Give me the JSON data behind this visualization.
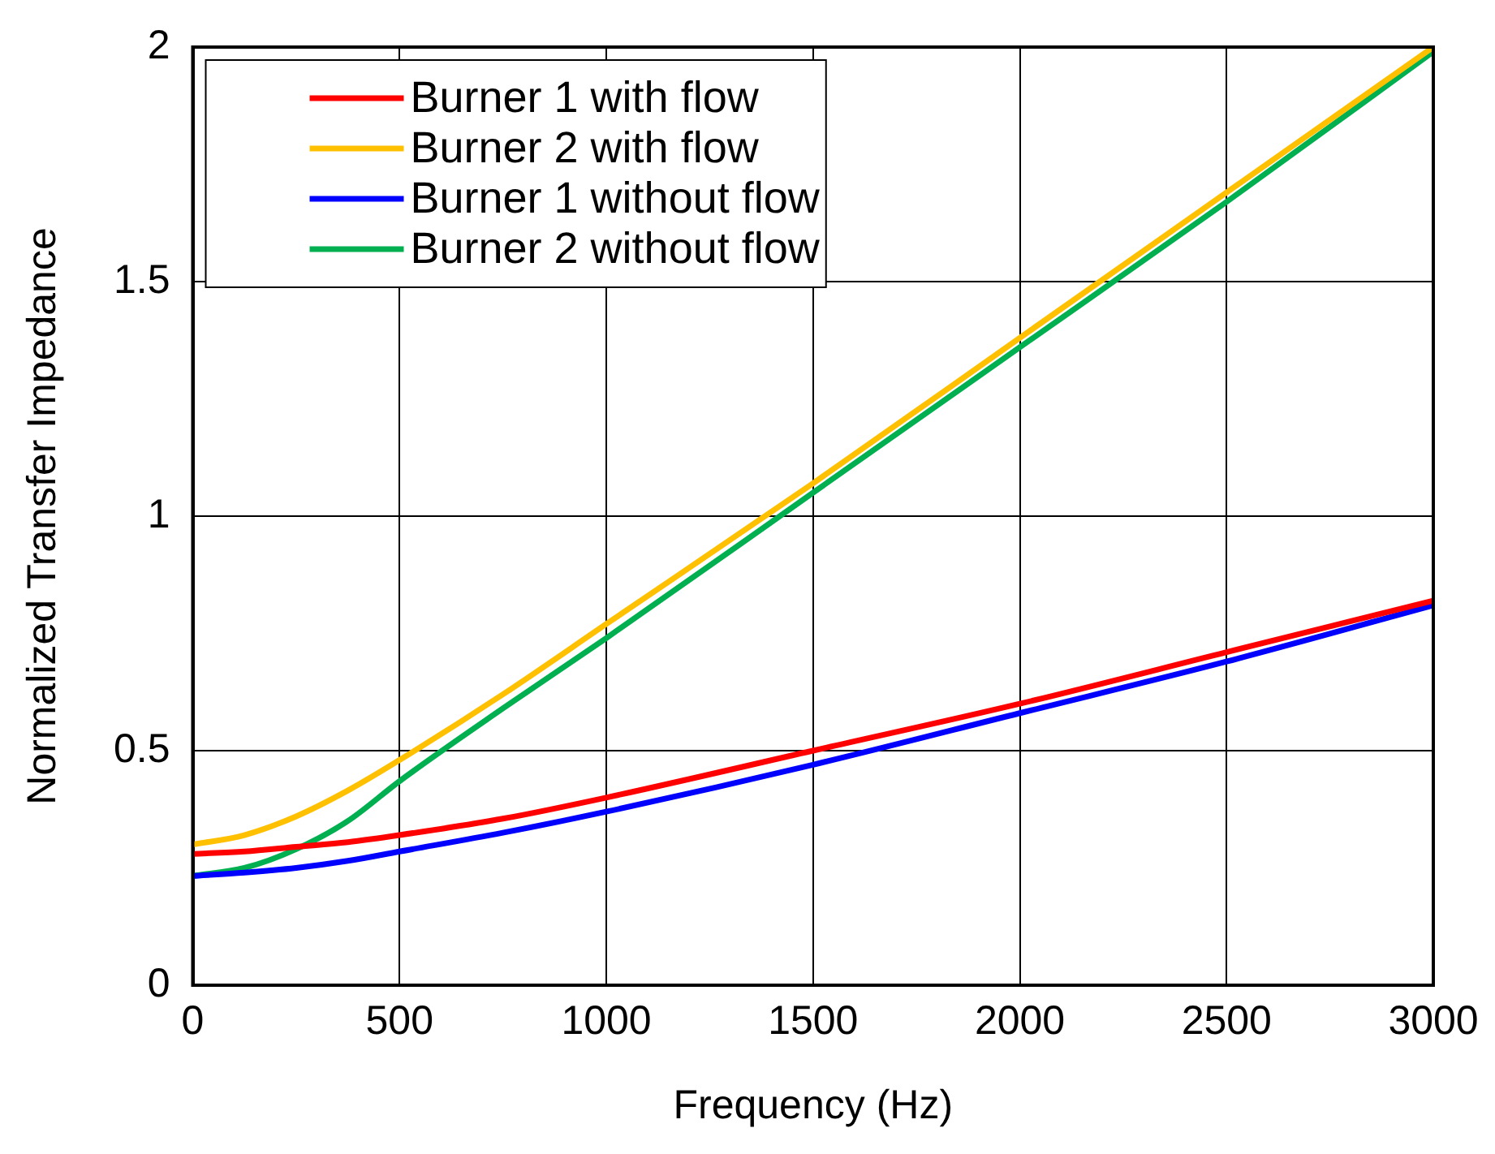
{
  "chart_data": {
    "type": "line",
    "xlabel": "Frequency (Hz)",
    "ylabel": "Normalized Transfer Impedance",
    "xlim": [
      0,
      3000
    ],
    "xticks": [
      0,
      500,
      1000,
      1500,
      2000,
      2500,
      3000
    ],
    "ylim": [
      0,
      2
    ],
    "yticks": [
      0,
      0.5,
      1,
      1.5,
      2
    ],
    "x": [
      0,
      125,
      250,
      375,
      500,
      750,
      1000,
      1500,
      2000,
      2500,
      3000
    ],
    "series": [
      {
        "name": "Burner 1 with flow",
        "color": "#ff0000",
        "values": [
          0.28,
          0.285,
          0.295,
          0.305,
          0.32,
          0.355,
          0.4,
          0.5,
          0.6,
          0.71,
          0.82
        ]
      },
      {
        "name": "Burner 2 with flow",
        "color": "#ffc000",
        "values": [
          0.3,
          0.32,
          0.36,
          0.415,
          0.48,
          0.62,
          0.77,
          1.07,
          1.38,
          1.69,
          2.0
        ]
      },
      {
        "name": "Burner 1 without flow",
        "color": "#0000ff",
        "values": [
          0.233,
          0.24,
          0.25,
          0.265,
          0.285,
          0.325,
          0.37,
          0.47,
          0.58,
          0.69,
          0.81
        ]
      },
      {
        "name": "Burner 2 without flow",
        "color": "#00b050",
        "values": [
          0.233,
          0.25,
          0.29,
          0.35,
          0.435,
          0.59,
          0.74,
          1.05,
          1.36,
          1.67,
          1.99
        ]
      }
    ],
    "grid": true,
    "legend": "top left",
    "marker": "none",
    "line_style": "solid"
  }
}
